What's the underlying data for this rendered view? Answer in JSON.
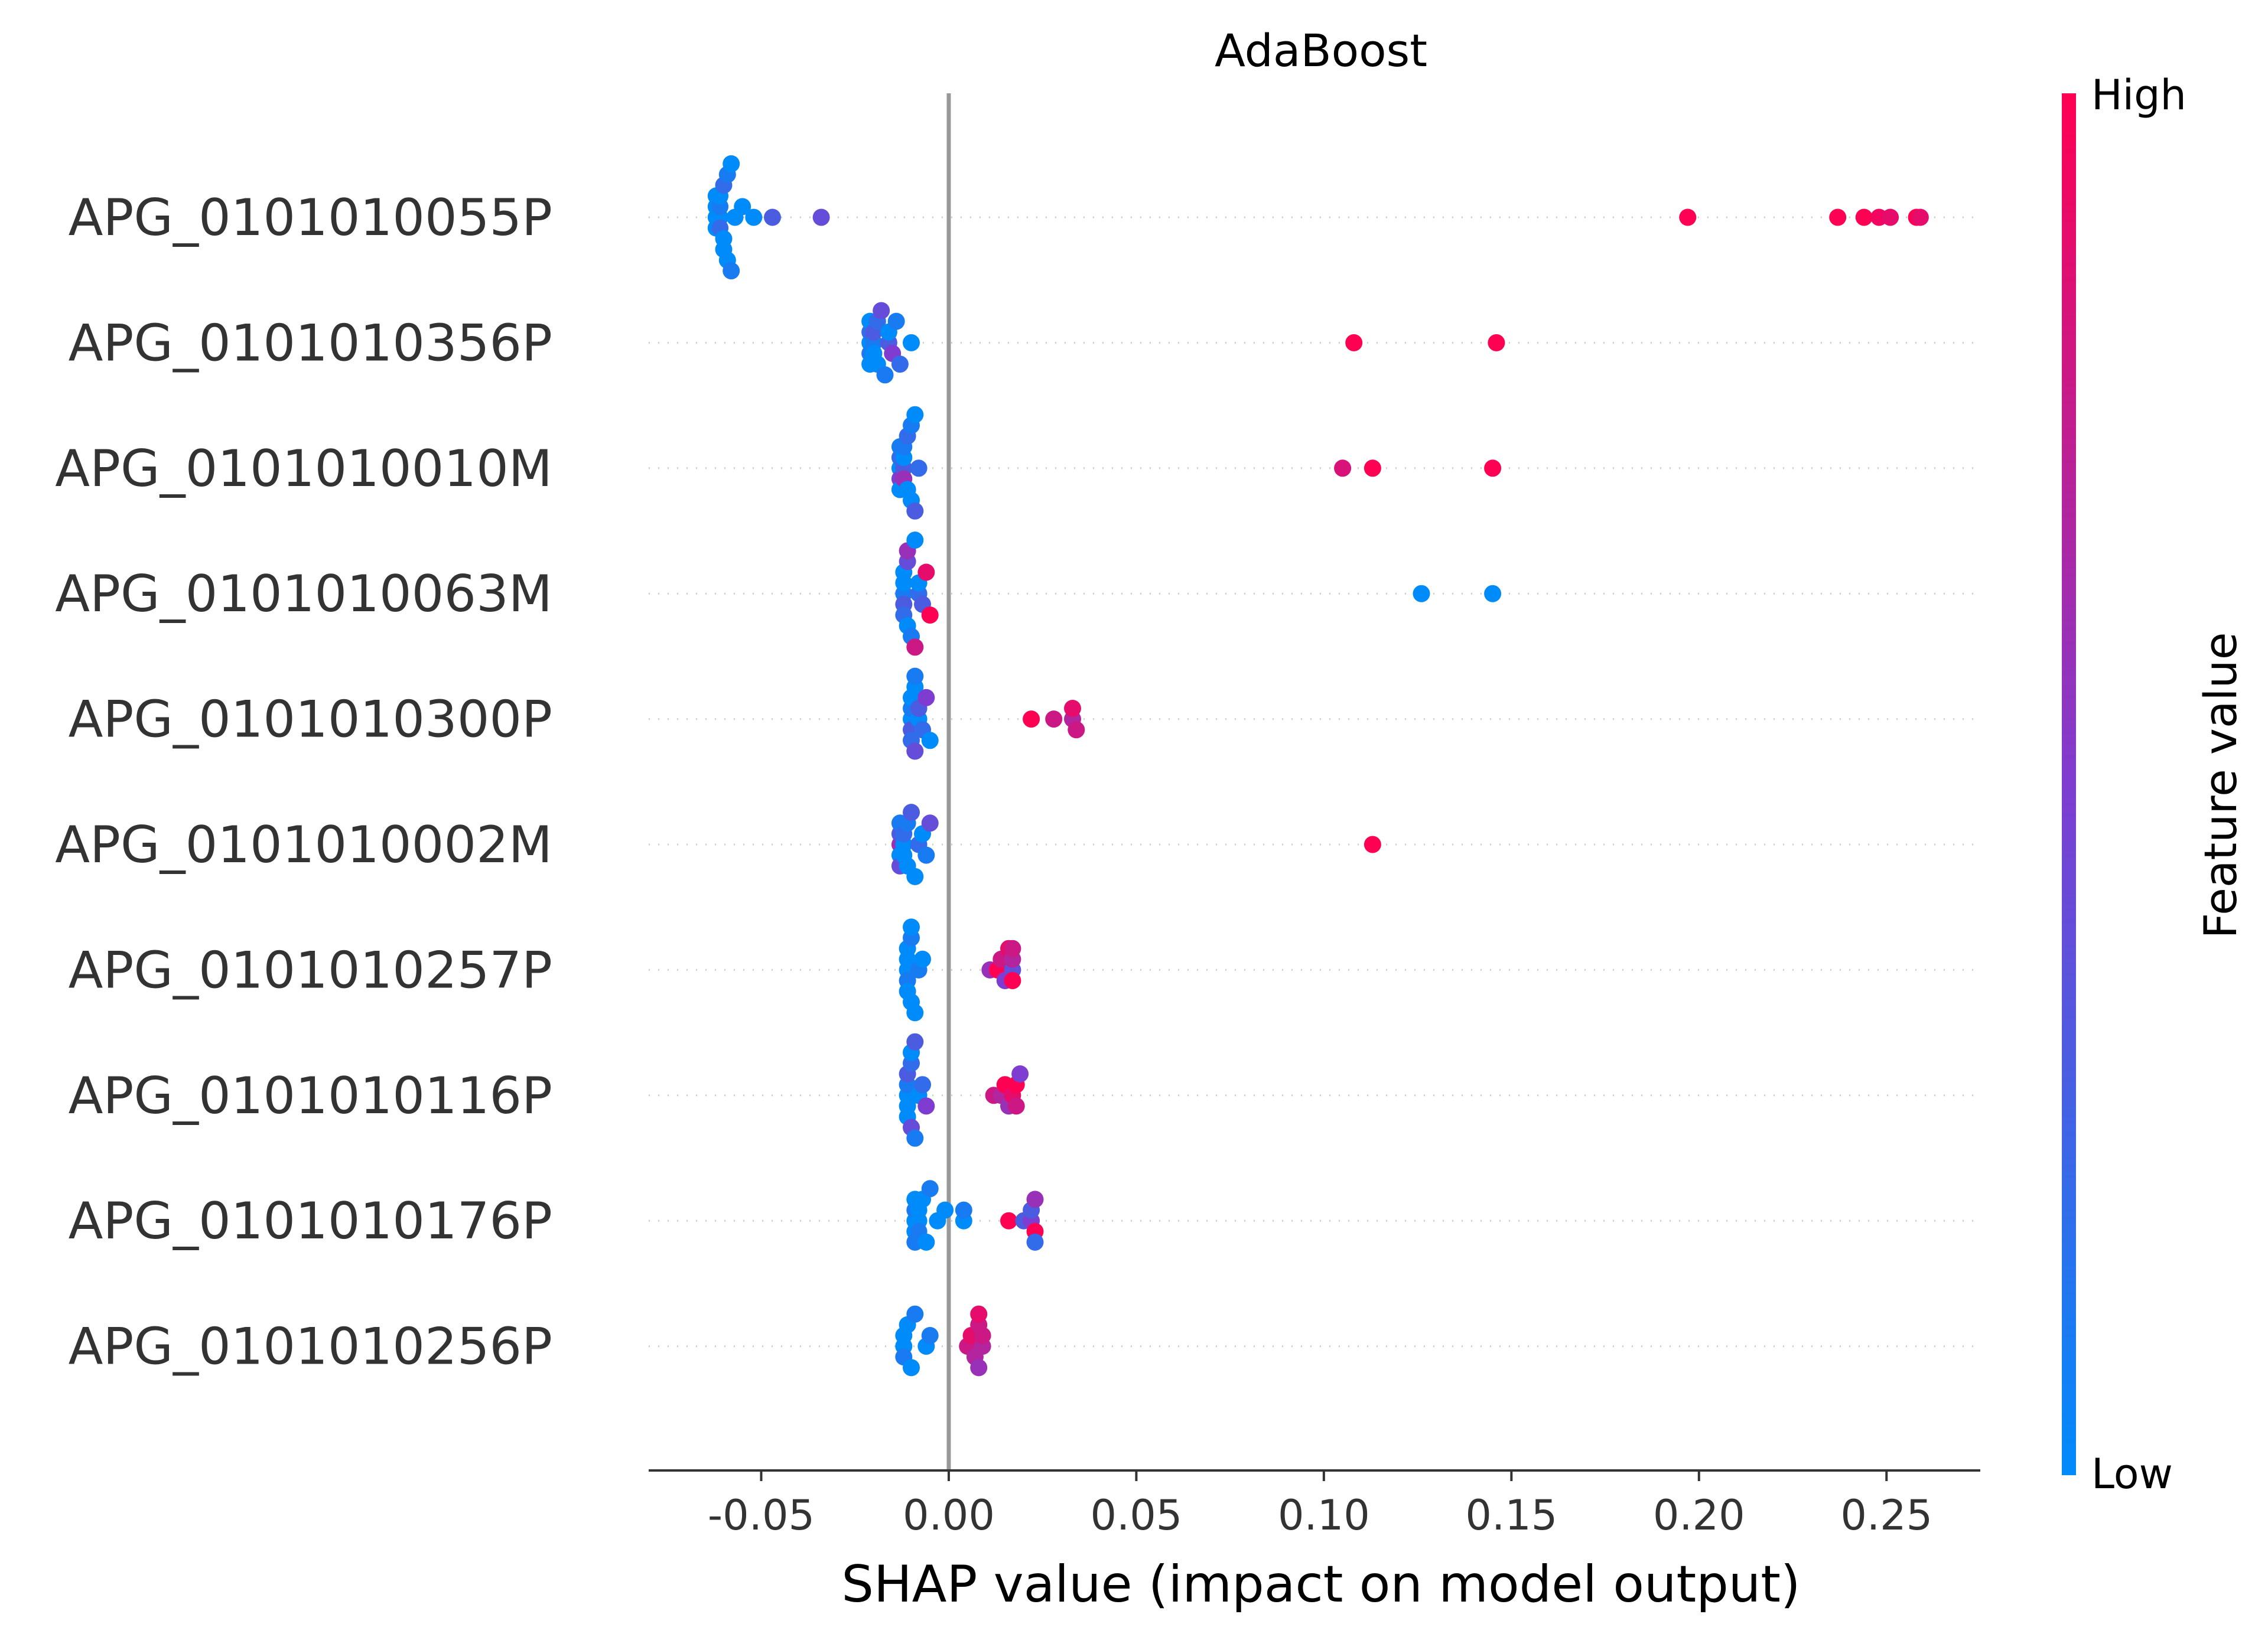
{
  "chart_data": {
    "type": "scatter",
    "subtype": "shap-beeswarm",
    "title": "AdaBoost",
    "xlabel": "SHAP value (impact on model output)",
    "xlim": [
      -0.08,
      0.275
    ],
    "xticks": [
      -0.05,
      0.0,
      0.05,
      0.1,
      0.15,
      0.2,
      0.25
    ],
    "xtick_labels": [
      "-0.05",
      "0.00",
      "0.05",
      "0.10",
      "0.15",
      "0.20",
      "0.25"
    ],
    "colorbar": {
      "label": "Feature value",
      "high_label": "High",
      "low_label": "Low",
      "low_color": "#008bfb",
      "high_color": "#ff0052"
    },
    "vertical_zero_line": true,
    "features": [
      {
        "name": "APG_0101010055P",
        "points": [
          {
            "x": -0.062,
            "v": 0.0
          },
          {
            "x": -0.062,
            "v": 0.0
          },
          {
            "x": -0.062,
            "v": 0.0
          },
          {
            "x": -0.062,
            "v": 0.0
          },
          {
            "x": -0.061,
            "v": 0.0
          },
          {
            "x": -0.061,
            "v": 0.1
          },
          {
            "x": -0.061,
            "v": 0.2
          },
          {
            "x": -0.061,
            "v": 0.0
          },
          {
            "x": -0.06,
            "v": 0.0
          },
          {
            "x": -0.06,
            "v": 0.2
          },
          {
            "x": -0.06,
            "v": 0.0
          },
          {
            "x": -0.059,
            "v": 0.1
          },
          {
            "x": -0.059,
            "v": 0.0
          },
          {
            "x": -0.058,
            "v": 0.0
          },
          {
            "x": -0.058,
            "v": 0.1
          },
          {
            "x": -0.057,
            "v": 0.0
          },
          {
            "x": -0.055,
            "v": 0.0
          },
          {
            "x": -0.052,
            "v": 0.0
          },
          {
            "x": -0.047,
            "v": 0.3
          },
          {
            "x": -0.034,
            "v": 0.4
          },
          {
            "x": 0.197,
            "v": 1.0
          },
          {
            "x": 0.237,
            "v": 1.0
          },
          {
            "x": 0.244,
            "v": 1.0
          },
          {
            "x": 0.248,
            "v": 0.95
          },
          {
            "x": 0.251,
            "v": 0.9
          },
          {
            "x": 0.258,
            "v": 1.0
          },
          {
            "x": 0.259,
            "v": 0.9
          }
        ]
      },
      {
        "name": "APG_0101010356P",
        "points": [
          {
            "x": -0.021,
            "v": 0.0
          },
          {
            "x": -0.021,
            "v": 0.2
          },
          {
            "x": -0.021,
            "v": 0.1
          },
          {
            "x": -0.021,
            "v": 0.0
          },
          {
            "x": -0.021,
            "v": 0.0
          },
          {
            "x": -0.02,
            "v": 0.1
          },
          {
            "x": -0.02,
            "v": 0.3
          },
          {
            "x": -0.02,
            "v": 0.0
          },
          {
            "x": -0.019,
            "v": 0.2
          },
          {
            "x": -0.019,
            "v": 0.0
          },
          {
            "x": -0.018,
            "v": 0.4
          },
          {
            "x": -0.017,
            "v": 0.1
          },
          {
            "x": -0.016,
            "v": 0.3
          },
          {
            "x": -0.016,
            "v": 0.0
          },
          {
            "x": -0.015,
            "v": 0.5
          },
          {
            "x": -0.014,
            "v": 0.1
          },
          {
            "x": -0.013,
            "v": 0.2
          },
          {
            "x": -0.01,
            "v": 0.0
          },
          {
            "x": 0.108,
            "v": 1.0
          },
          {
            "x": 0.146,
            "v": 1.0
          }
        ]
      },
      {
        "name": "APG_0101010010M",
        "points": [
          {
            "x": -0.013,
            "v": 0.0
          },
          {
            "x": -0.013,
            "v": 0.2
          },
          {
            "x": -0.013,
            "v": 0.5
          },
          {
            "x": -0.013,
            "v": 0.1
          },
          {
            "x": -0.013,
            "v": 0.0
          },
          {
            "x": -0.012,
            "v": 0.3
          },
          {
            "x": -0.012,
            "v": 0.0
          },
          {
            "x": -0.012,
            "v": 0.6
          },
          {
            "x": -0.012,
            "v": 0.1
          },
          {
            "x": -0.011,
            "v": 0.0
          },
          {
            "x": -0.011,
            "v": 0.2
          },
          {
            "x": -0.01,
            "v": 0.0
          },
          {
            "x": -0.01,
            "v": 0.1
          },
          {
            "x": -0.009,
            "v": 0.3
          },
          {
            "x": -0.009,
            "v": 0.0
          },
          {
            "x": -0.008,
            "v": 0.2
          },
          {
            "x": 0.105,
            "v": 0.85
          },
          {
            "x": 0.113,
            "v": 1.0
          },
          {
            "x": 0.145,
            "v": 1.0
          }
        ]
      },
      {
        "name": "APG_0101010063M",
        "points": [
          {
            "x": -0.012,
            "v": 0.1
          },
          {
            "x": -0.012,
            "v": 0.0
          },
          {
            "x": -0.012,
            "v": 0.3
          },
          {
            "x": -0.012,
            "v": 0.0
          },
          {
            "x": -0.012,
            "v": 0.2
          },
          {
            "x": -0.011,
            "v": 0.4
          },
          {
            "x": -0.011,
            "v": 0.0
          },
          {
            "x": -0.011,
            "v": 0.6
          },
          {
            "x": -0.01,
            "v": 0.1
          },
          {
            "x": -0.009,
            "v": 0.0
          },
          {
            "x": -0.009,
            "v": 0.8
          },
          {
            "x": -0.008,
            "v": 0.2
          },
          {
            "x": -0.008,
            "v": 0.0
          },
          {
            "x": -0.007,
            "v": 0.3
          },
          {
            "x": -0.006,
            "v": 0.9
          },
          {
            "x": -0.005,
            "v": 1.0
          },
          {
            "x": 0.126,
            "v": 0.0
          },
          {
            "x": 0.145,
            "v": 0.0
          }
        ]
      },
      {
        "name": "APG_0101010300P",
        "points": [
          {
            "x": -0.01,
            "v": 0.0
          },
          {
            "x": -0.01,
            "v": 0.1
          },
          {
            "x": -0.01,
            "v": 0.3
          },
          {
            "x": -0.01,
            "v": 0.0
          },
          {
            "x": -0.01,
            "v": 0.2
          },
          {
            "x": -0.009,
            "v": 0.0
          },
          {
            "x": -0.009,
            "v": 0.4
          },
          {
            "x": -0.009,
            "v": 0.1
          },
          {
            "x": -0.008,
            "v": 0.0
          },
          {
            "x": -0.008,
            "v": 0.3
          },
          {
            "x": -0.007,
            "v": 0.2
          },
          {
            "x": -0.006,
            "v": 0.5
          },
          {
            "x": -0.005,
            "v": 0.0
          },
          {
            "x": 0.022,
            "v": 1.0
          },
          {
            "x": 0.028,
            "v": 0.8
          },
          {
            "x": 0.033,
            "v": 0.7
          },
          {
            "x": 0.033,
            "v": 0.9
          },
          {
            "x": 0.034,
            "v": 0.8
          }
        ]
      },
      {
        "name": "APG_0101010002M",
        "points": [
          {
            "x": -0.013,
            "v": 0.6
          },
          {
            "x": -0.013,
            "v": 0.3
          },
          {
            "x": -0.013,
            "v": 0.0
          },
          {
            "x": -0.013,
            "v": 0.1
          },
          {
            "x": -0.013,
            "v": 0.4
          },
          {
            "x": -0.012,
            "v": 0.0
          },
          {
            "x": -0.012,
            "v": 0.2
          },
          {
            "x": -0.012,
            "v": 0.0
          },
          {
            "x": -0.011,
            "v": 0.1
          },
          {
            "x": -0.011,
            "v": 0.0
          },
          {
            "x": -0.01,
            "v": 0.3
          },
          {
            "x": -0.009,
            "v": 0.0
          },
          {
            "x": -0.008,
            "v": 0.2
          },
          {
            "x": -0.007,
            "v": 0.0
          },
          {
            "x": -0.006,
            "v": 0.1
          },
          {
            "x": -0.005,
            "v": 0.4
          },
          {
            "x": 0.113,
            "v": 1.0
          }
        ]
      },
      {
        "name": "APG_0101010257P",
        "points": [
          {
            "x": -0.011,
            "v": 0.0
          },
          {
            "x": -0.011,
            "v": 0.0
          },
          {
            "x": -0.011,
            "v": 0.1
          },
          {
            "x": -0.011,
            "v": 0.0
          },
          {
            "x": -0.011,
            "v": 0.0
          },
          {
            "x": -0.01,
            "v": 0.1
          },
          {
            "x": -0.01,
            "v": 0.0
          },
          {
            "x": -0.01,
            "v": 0.0
          },
          {
            "x": -0.009,
            "v": 0.0
          },
          {
            "x": -0.008,
            "v": 0.1
          },
          {
            "x": -0.007,
            "v": 0.0
          },
          {
            "x": 0.011,
            "v": 0.6
          },
          {
            "x": 0.013,
            "v": 1.0
          },
          {
            "x": 0.014,
            "v": 0.8
          },
          {
            "x": 0.015,
            "v": 0.5
          },
          {
            "x": 0.016,
            "v": 0.9
          },
          {
            "x": 0.017,
            "v": 0.4
          },
          {
            "x": 0.017,
            "v": 0.7
          },
          {
            "x": 0.017,
            "v": 1.0
          },
          {
            "x": 0.017,
            "v": 0.8
          }
        ]
      },
      {
        "name": "APG_0101010116P",
        "points": [
          {
            "x": -0.011,
            "v": 0.0
          },
          {
            "x": -0.011,
            "v": 0.1
          },
          {
            "x": -0.011,
            "v": 0.0
          },
          {
            "x": -0.011,
            "v": 0.3
          },
          {
            "x": -0.011,
            "v": 0.0
          },
          {
            "x": -0.01,
            "v": 0.2
          },
          {
            "x": -0.01,
            "v": 0.4
          },
          {
            "x": -0.01,
            "v": 0.0
          },
          {
            "x": -0.009,
            "v": 0.1
          },
          {
            "x": -0.009,
            "v": 0.3
          },
          {
            "x": -0.008,
            "v": 0.0
          },
          {
            "x": -0.007,
            "v": 0.2
          },
          {
            "x": -0.006,
            "v": 0.5
          },
          {
            "x": 0.012,
            "v": 0.8
          },
          {
            "x": 0.014,
            "v": 0.7
          },
          {
            "x": 0.015,
            "v": 1.0
          },
          {
            "x": 0.016,
            "v": 0.6
          },
          {
            "x": 0.017,
            "v": 0.9
          },
          {
            "x": 0.018,
            "v": 1.0
          },
          {
            "x": 0.018,
            "v": 0.8
          },
          {
            "x": 0.019,
            "v": 0.5
          }
        ]
      },
      {
        "name": "APG_0101010176P",
        "points": [
          {
            "x": -0.009,
            "v": 0.0
          },
          {
            "x": -0.009,
            "v": 0.1
          },
          {
            "x": -0.009,
            "v": 0.0
          },
          {
            "x": -0.009,
            "v": 0.0
          },
          {
            "x": -0.009,
            "v": 0.1
          },
          {
            "x": -0.008,
            "v": 0.0
          },
          {
            "x": -0.008,
            "v": 0.0
          },
          {
            "x": -0.008,
            "v": 0.1
          },
          {
            "x": -0.007,
            "v": 0.0
          },
          {
            "x": -0.006,
            "v": 0.0
          },
          {
            "x": -0.005,
            "v": 0.1
          },
          {
            "x": -0.003,
            "v": 0.0
          },
          {
            "x": -0.001,
            "v": 0.0
          },
          {
            "x": 0.004,
            "v": 0.0
          },
          {
            "x": 0.004,
            "v": 0.1
          },
          {
            "x": 0.016,
            "v": 1.0
          },
          {
            "x": 0.02,
            "v": 0.3
          },
          {
            "x": 0.022,
            "v": 0.5
          },
          {
            "x": 0.022,
            "v": 0.3
          },
          {
            "x": 0.023,
            "v": 1.0
          },
          {
            "x": 0.023,
            "v": 0.6
          },
          {
            "x": 0.023,
            "v": 0.2
          }
        ]
      },
      {
        "name": "APG_0101010256P",
        "points": [
          {
            "x": -0.012,
            "v": 0.0
          },
          {
            "x": -0.012,
            "v": 0.0
          },
          {
            "x": -0.012,
            "v": 0.1
          },
          {
            "x": -0.011,
            "v": 0.0
          },
          {
            "x": -0.01,
            "v": 0.0
          },
          {
            "x": -0.009,
            "v": 0.1
          },
          {
            "x": -0.006,
            "v": 0.0
          },
          {
            "x": -0.005,
            "v": 0.1
          },
          {
            "x": 0.005,
            "v": 0.8
          },
          {
            "x": 0.006,
            "v": 0.9
          },
          {
            "x": 0.007,
            "v": 0.7
          },
          {
            "x": 0.008,
            "v": 0.8
          },
          {
            "x": 0.008,
            "v": 0.6
          },
          {
            "x": 0.008,
            "v": 0.9
          },
          {
            "x": 0.009,
            "v": 0.7
          },
          {
            "x": 0.009,
            "v": 0.8
          }
        ]
      }
    ]
  }
}
